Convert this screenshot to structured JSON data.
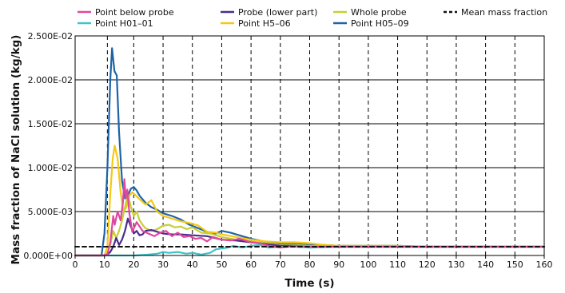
{
  "chart_data": {
    "type": "line",
    "title": "",
    "xlabel": "Time (s)",
    "ylabel": "Mass fraction of NaCl solution (kg/kg)",
    "xlim": [
      0,
      160
    ],
    "ylim": [
      0,
      0.025
    ],
    "x_ticks": [
      "0",
      "10",
      "20",
      "30",
      "40",
      "50",
      "60",
      "70",
      "80",
      "90",
      "100",
      "110",
      "120",
      "130",
      "140",
      "150",
      "160"
    ],
    "y_ticks": [
      "0.000E+00",
      "5.000E-03",
      "1.000E-02",
      "1.500E-02",
      "2.000E-02",
      "2.500E-02"
    ],
    "vertical_dashed_x": [
      11,
      20,
      30,
      40,
      50,
      60,
      70,
      80,
      90,
      100,
      110,
      120,
      130,
      140,
      150
    ],
    "horizontal_grid": true,
    "legend_position": "top",
    "series": [
      {
        "name": "Point below probe",
        "color": "#e0479e",
        "dash": "solid",
        "points": [
          [
            0,
            0
          ],
          [
            9,
            0
          ],
          [
            11,
            0.0001
          ],
          [
            12,
            0.0015
          ],
          [
            13,
            0.0045
          ],
          [
            13.5,
            0.0035
          ],
          [
            14.5,
            0.005
          ],
          [
            15.5,
            0.004
          ],
          [
            16.3,
            0.006
          ],
          [
            16.8,
            0.0087
          ],
          [
            17.3,
            0.0065
          ],
          [
            17.8,
            0.0075
          ],
          [
            18.5,
            0.0048
          ],
          [
            19.5,
            0.0027
          ],
          [
            21,
            0.0038
          ],
          [
            23,
            0.0028
          ],
          [
            25,
            0.0025
          ],
          [
            27,
            0.0022
          ],
          [
            29,
            0.0026
          ],
          [
            31,
            0.0028
          ],
          [
            33,
            0.0022
          ],
          [
            35,
            0.0026
          ],
          [
            37,
            0.0021
          ],
          [
            39,
            0.0022
          ],
          [
            41,
            0.0019
          ],
          [
            43,
            0.002
          ],
          [
            45,
            0.0016
          ],
          [
            47,
            0.0021
          ],
          [
            50,
            0.0018
          ],
          [
            53,
            0.0017
          ],
          [
            56,
            0.0019
          ],
          [
            60,
            0.0015
          ],
          [
            63,
            0.0014
          ],
          [
            66,
            0.0011
          ],
          [
            70,
            0.0009
          ],
          [
            75,
            0.0011
          ],
          [
            80,
            0.001
          ],
          [
            90,
            0.001
          ],
          [
            100,
            0.001
          ],
          [
            110,
            0.001
          ],
          [
            120,
            0.001
          ],
          [
            130,
            0.001
          ],
          [
            140,
            0.001
          ],
          [
            150,
            0.001
          ],
          [
            160,
            0.001
          ]
        ]
      },
      {
        "name": "Probe (lower part)",
        "color": "#4a2d8c",
        "dash": "solid",
        "points": [
          [
            0,
            0
          ],
          [
            10,
            0
          ],
          [
            11,
            0.0001
          ],
          [
            12,
            0.0004
          ],
          [
            13,
            0.001
          ],
          [
            14,
            0.002
          ],
          [
            15,
            0.0012
          ],
          [
            16,
            0.0018
          ],
          [
            17,
            0.0028
          ],
          [
            18,
            0.0042
          ],
          [
            19,
            0.0033
          ],
          [
            20,
            0.0025
          ],
          [
            21,
            0.0028
          ],
          [
            22,
            0.0023
          ],
          [
            23,
            0.0024
          ],
          [
            24,
            0.0028
          ],
          [
            26,
            0.0029
          ],
          [
            28,
            0.0027
          ],
          [
            30,
            0.0025
          ],
          [
            33,
            0.0024
          ],
          [
            36,
            0.0024
          ],
          [
            40,
            0.0023
          ],
          [
            45,
            0.0022
          ],
          [
            50,
            0.0018
          ],
          [
            55,
            0.0017
          ],
          [
            60,
            0.0015
          ],
          [
            65,
            0.0013
          ],
          [
            70,
            0.0011
          ],
          [
            75,
            0.0011
          ],
          [
            80,
            0.001
          ],
          [
            90,
            0.001
          ],
          [
            100,
            0.001
          ],
          [
            110,
            0.001
          ],
          [
            120,
            0.001
          ],
          [
            130,
            0.001
          ],
          [
            140,
            0.001
          ],
          [
            150,
            0.001
          ],
          [
            160,
            0.001
          ]
        ]
      },
      {
        "name": "Whole probe",
        "color": "#c5d034",
        "dash": "solid",
        "points": [
          [
            0,
            0
          ],
          [
            10,
            0
          ],
          [
            11,
            0.0003
          ],
          [
            12,
            0.0012
          ],
          [
            13,
            0.0028
          ],
          [
            14,
            0.002
          ],
          [
            15,
            0.0028
          ],
          [
            16,
            0.004
          ],
          [
            17,
            0.0055
          ],
          [
            18,
            0.0069
          ],
          [
            19,
            0.0056
          ],
          [
            20,
            0.0045
          ],
          [
            21,
            0.005
          ],
          [
            22,
            0.004
          ],
          [
            23,
            0.0035
          ],
          [
            24,
            0.0031
          ],
          [
            26,
            0.0028
          ],
          [
            28,
            0.003
          ],
          [
            30,
            0.0034
          ],
          [
            32,
            0.0035
          ],
          [
            34,
            0.0032
          ],
          [
            36,
            0.0033
          ],
          [
            38,
            0.003
          ],
          [
            40,
            0.0032
          ],
          [
            43,
            0.0026
          ],
          [
            46,
            0.0025
          ],
          [
            50,
            0.0021
          ],
          [
            55,
            0.0018
          ],
          [
            60,
            0.0016
          ],
          [
            65,
            0.0014
          ],
          [
            70,
            0.0012
          ],
          [
            75,
            0.0012
          ],
          [
            80,
            0.0011
          ],
          [
            90,
            0.001
          ],
          [
            100,
            0.001
          ],
          [
            110,
            0.001
          ],
          [
            120,
            0.001
          ],
          [
            130,
            0.001
          ],
          [
            140,
            0.001
          ],
          [
            150,
            0.001
          ],
          [
            160,
            0.001
          ]
        ]
      },
      {
        "name": "Mean mass fraction",
        "color": "#111111",
        "dash": "dashed",
        "points": [
          [
            0,
            0.001
          ],
          [
            160,
            0.001
          ]
        ]
      },
      {
        "name": "Point H01–01",
        "color": "#3ec4c8",
        "dash": "solid",
        "points": [
          [
            0,
            0
          ],
          [
            20,
            0
          ],
          [
            25,
            0.0001
          ],
          [
            28,
            0.0002
          ],
          [
            30,
            0.0004
          ],
          [
            32,
            0.0003
          ],
          [
            35,
            0.0004
          ],
          [
            38,
            0.0002
          ],
          [
            40,
            0.0003
          ],
          [
            43,
            0.0001
          ],
          [
            46,
            0.0003
          ],
          [
            48,
            0.0007
          ],
          [
            50,
            0.0008
          ],
          [
            52,
            0.0009
          ],
          [
            54,
            0.0011
          ],
          [
            57,
            0.0009
          ],
          [
            60,
            0.0011
          ],
          [
            63,
            0.0012
          ],
          [
            66,
            0.0009
          ],
          [
            70,
            0.001
          ],
          [
            75,
            0.001
          ],
          [
            80,
            0.0009
          ],
          [
            90,
            0.001
          ],
          [
            100,
            0.001
          ],
          [
            110,
            0.001
          ],
          [
            120,
            0.001
          ],
          [
            130,
            0.001
          ],
          [
            140,
            0.001
          ],
          [
            150,
            0.001
          ],
          [
            160,
            0.001
          ]
        ]
      },
      {
        "name": "Point H5–06",
        "color": "#f5c816",
        "dash": "solid",
        "points": [
          [
            0,
            0
          ],
          [
            10,
            0
          ],
          [
            11,
            0.001
          ],
          [
            12,
            0.007
          ],
          [
            12.8,
            0.011
          ],
          [
            13.5,
            0.0125
          ],
          [
            14.5,
            0.011
          ],
          [
            15.5,
            0.0072
          ],
          [
            16.5,
            0.005
          ],
          [
            17.5,
            0.0055
          ],
          [
            18.5,
            0.0068
          ],
          [
            19.5,
            0.0072
          ],
          [
            20.5,
            0.0069
          ],
          [
            22,
            0.0064
          ],
          [
            24,
            0.0058
          ],
          [
            26,
            0.0063
          ],
          [
            28,
            0.005
          ],
          [
            30,
            0.0045
          ],
          [
            33,
            0.0042
          ],
          [
            36,
            0.0039
          ],
          [
            39,
            0.0037
          ],
          [
            42,
            0.0034
          ],
          [
            45,
            0.0027
          ],
          [
            48,
            0.0026
          ],
          [
            50,
            0.0024
          ],
          [
            55,
            0.0021
          ],
          [
            60,
            0.0018
          ],
          [
            65,
            0.0016
          ],
          [
            70,
            0.0015
          ],
          [
            75,
            0.0015
          ],
          [
            80,
            0.0014
          ],
          [
            85,
            0.0012
          ],
          [
            90,
            0.0011
          ],
          [
            100,
            0.0011
          ],
          [
            110,
            0.0011
          ],
          [
            120,
            0.001
          ],
          [
            130,
            0.001
          ],
          [
            140,
            0.001
          ],
          [
            150,
            0.001
          ],
          [
            160,
            0.001
          ]
        ]
      },
      {
        "name": "Point H05–09",
        "color": "#1f63a7",
        "dash": "solid",
        "points": [
          [
            0,
            0
          ],
          [
            9,
            0
          ],
          [
            10,
            0.0025
          ],
          [
            11,
            0.01
          ],
          [
            12,
            0.02
          ],
          [
            12.6,
            0.0236
          ],
          [
            13.4,
            0.021
          ],
          [
            14.2,
            0.0205
          ],
          [
            15,
            0.014
          ],
          [
            16,
            0.0085
          ],
          [
            17,
            0.0065
          ],
          [
            18,
            0.0068
          ],
          [
            19,
            0.0076
          ],
          [
            20,
            0.0078
          ],
          [
            21,
            0.0074
          ],
          [
            22,
            0.0068
          ],
          [
            24,
            0.006
          ],
          [
            26,
            0.0055
          ],
          [
            28,
            0.0052
          ],
          [
            30,
            0.0048
          ],
          [
            33,
            0.0045
          ],
          [
            36,
            0.0041
          ],
          [
            39,
            0.0035
          ],
          [
            42,
            0.0031
          ],
          [
            45,
            0.0027
          ],
          [
            48,
            0.0025
          ],
          [
            50,
            0.0028
          ],
          [
            53,
            0.0026
          ],
          [
            56,
            0.0023
          ],
          [
            60,
            0.0019
          ],
          [
            63,
            0.0017
          ],
          [
            66,
            0.0014
          ],
          [
            70,
            0.0013
          ],
          [
            75,
            0.0013
          ],
          [
            80,
            0.0012
          ],
          [
            85,
            0.0012
          ],
          [
            90,
            0.0011
          ],
          [
            100,
            0.0011
          ],
          [
            110,
            0.0011
          ],
          [
            120,
            0.001
          ],
          [
            130,
            0.001
          ],
          [
            140,
            0.001
          ],
          [
            150,
            0.001
          ],
          [
            160,
            0.001
          ]
        ]
      }
    ]
  }
}
